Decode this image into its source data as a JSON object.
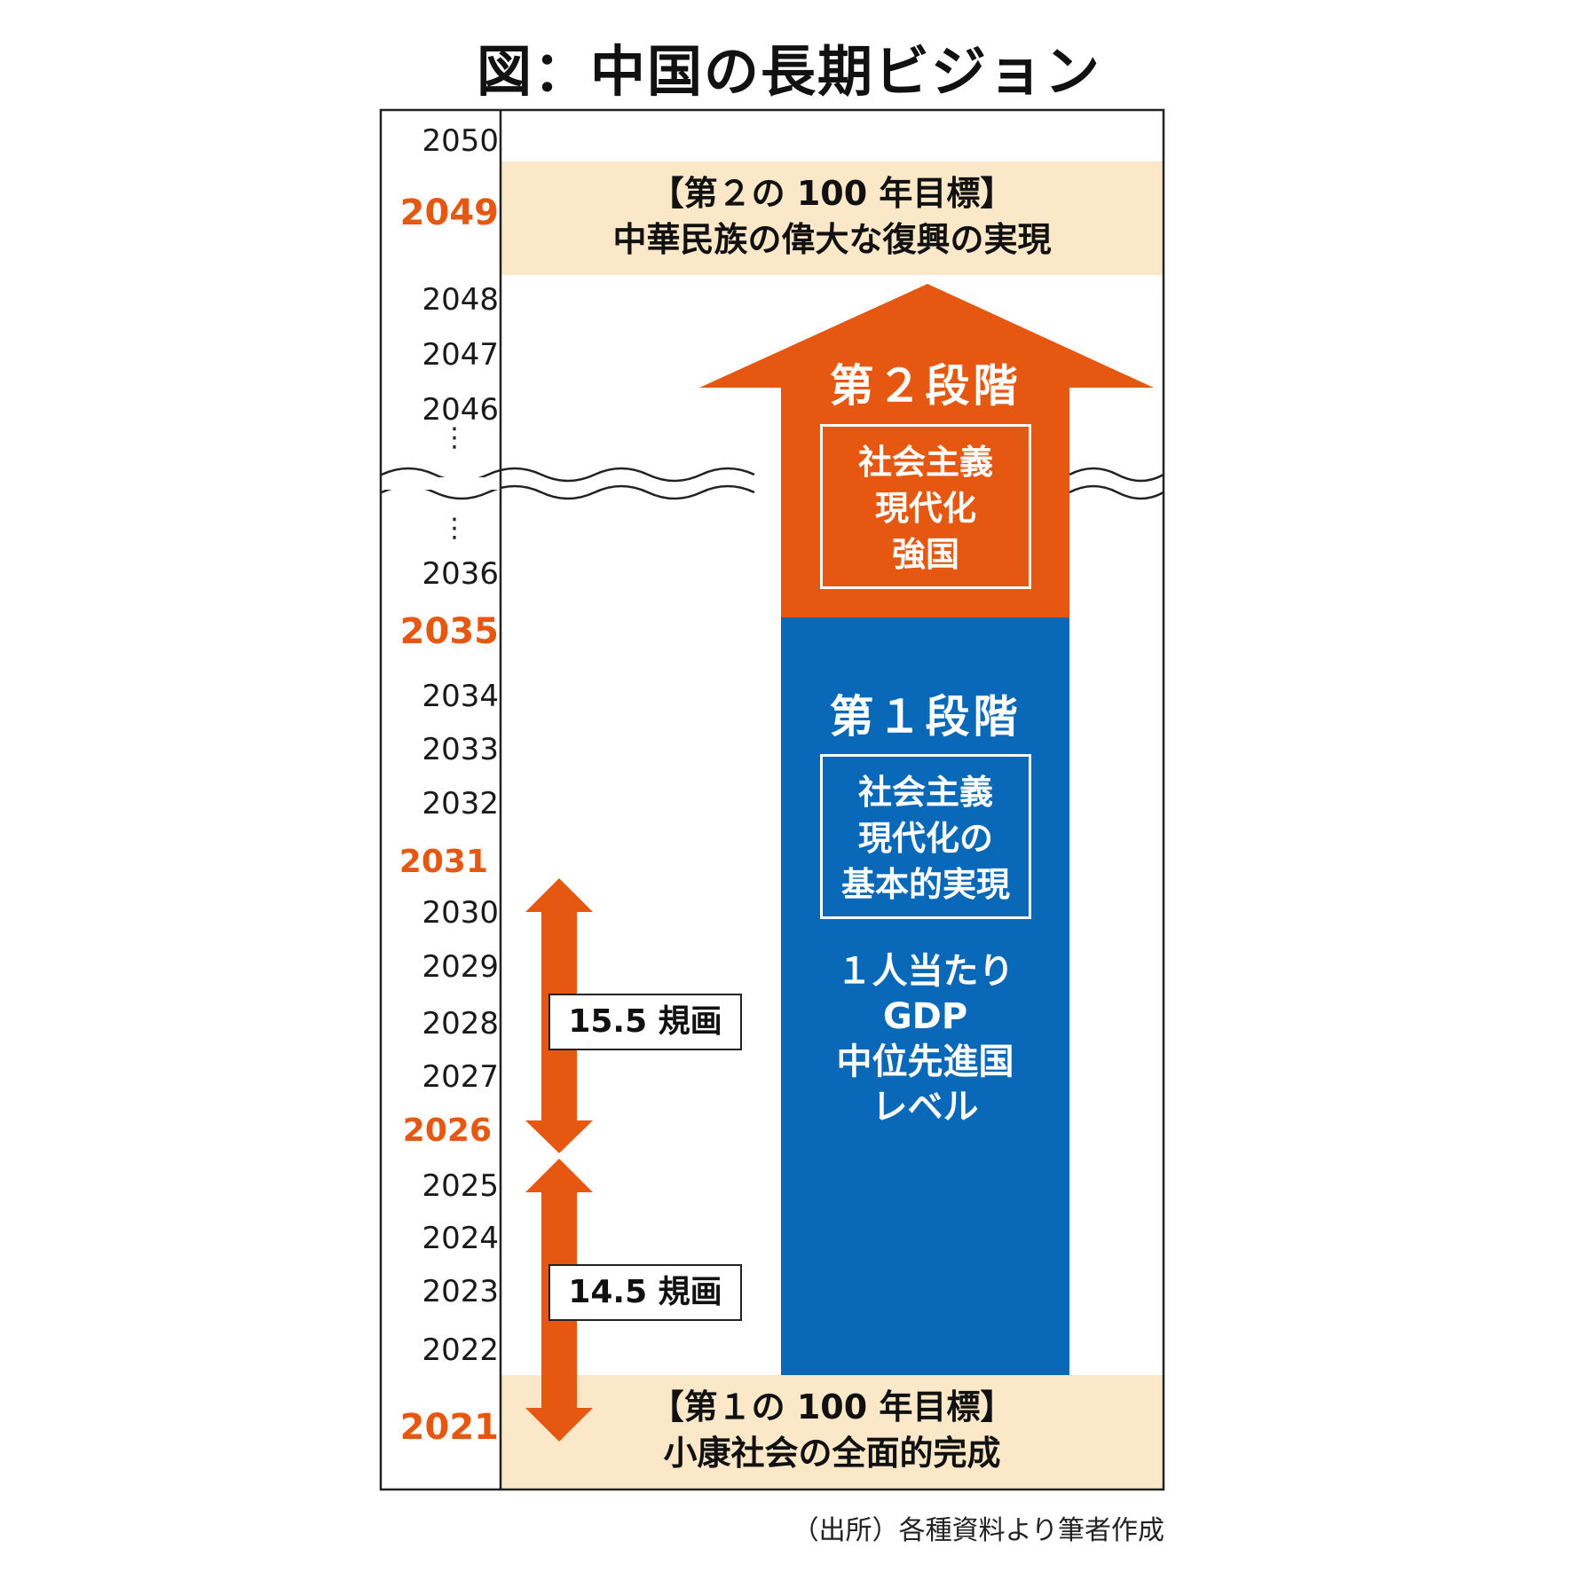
{
  "title": "図：中国の長期ビジョン",
  "years": {
    "y2050": "2050",
    "y2049": "2049",
    "y2048": "2048",
    "y2047": "2047",
    "y2046": "2046",
    "y2036": "2036",
    "y2035": "2035",
    "y2034": "2034",
    "y2033": "2033",
    "y2032": "2032",
    "y2031": "2031",
    "y2030": "2030",
    "y2029": "2029",
    "y2028": "2028",
    "y2027": "2027",
    "y2026": "2026",
    "y2025": "2025",
    "y2024": "2024",
    "y2023": "2023",
    "y2022": "2022",
    "y2021": "2021",
    "ellipsis": "⋮"
  },
  "goal2": {
    "line1": "【第２の 100 年目標】",
    "line2": "中華民族の偉大な復興の実現"
  },
  "goal1": {
    "line1": "【第１の 100 年目標】",
    "line2": "小康社会の全面的完成"
  },
  "stage2": {
    "title": "第２段階",
    "box": [
      "社会主義",
      "現代化",
      "強国"
    ]
  },
  "stage1": {
    "title": "第１段階",
    "box": [
      "社会主義",
      "現代化の",
      "基本的実現"
    ],
    "gdp": [
      "１人当たり",
      "GDP",
      "中位先進国",
      "レベル"
    ]
  },
  "plans": {
    "p15": "15.5 規画",
    "p14": "14.5 規画"
  },
  "source": "（出所）各種資料より筆者作成",
  "colors": {
    "orange": "#e65811",
    "blue": "#0968b8",
    "band": "#fbe8c8",
    "accent_text": "#e65811"
  }
}
